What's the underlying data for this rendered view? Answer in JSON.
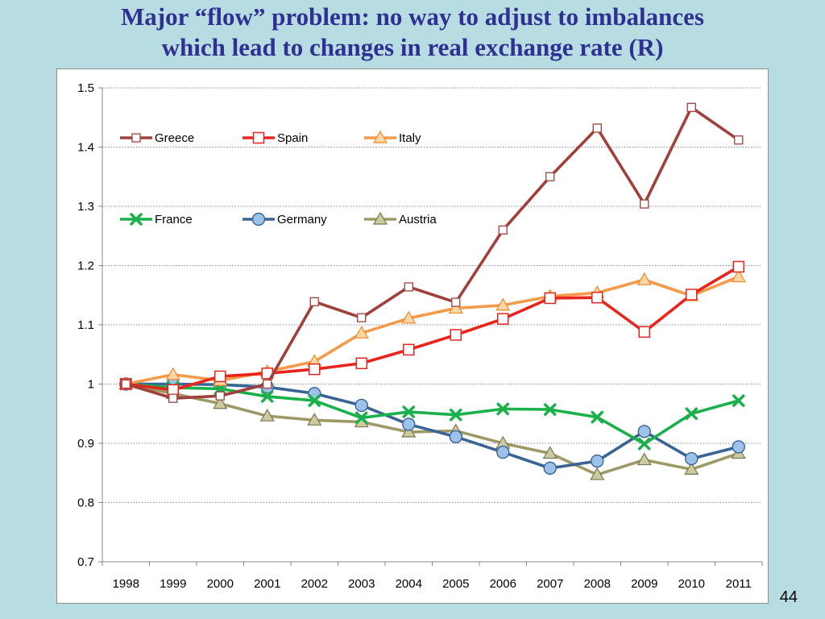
{
  "title": {
    "line1": "Major “flow” problem: no way to adjust to imbalances",
    "line2": "which lead to changes in real exchange rate (R)"
  },
  "page_number": "44",
  "chart_data": {
    "type": "line",
    "categories": [
      "1998",
      "1999",
      "2000",
      "2001",
      "2002",
      "2003",
      "2004",
      "2005",
      "2006",
      "2007",
      "2008",
      "2009",
      "2010",
      "2011"
    ],
    "ylim": [
      0.7,
      1.5
    ],
    "yticks": [
      0.7,
      0.8,
      0.9,
      1,
      1.1,
      1.2,
      1.3,
      1.4,
      1.5
    ],
    "ytick_labels": [
      "0.7",
      "0.8",
      "0.9",
      "1",
      "1.1",
      "1.2",
      "1.3",
      "1.4",
      "1.5"
    ],
    "grid": "horizontal dotted",
    "legend_position": "top-left inside, two rows",
    "series": [
      {
        "name": "Greece",
        "color": "#a0403a",
        "marker": "square-open",
        "values": [
          1.0,
          0.976,
          0.98,
          1.0,
          1.139,
          1.112,
          1.164,
          1.138,
          1.26,
          1.35,
          1.432,
          1.304,
          1.467,
          1.412
        ]
      },
      {
        "name": "Spain",
        "color": "#e8241c",
        "marker": "square-open-large",
        "values": [
          1.0,
          0.99,
          1.013,
          1.018,
          1.025,
          1.035,
          1.058,
          1.083,
          1.11,
          1.145,
          1.146,
          1.088,
          1.151,
          1.198
        ]
      },
      {
        "name": "Italy",
        "color": "#f49a48",
        "marker": "triangle",
        "values": [
          1.0,
          1.016,
          1.006,
          1.021,
          1.038,
          1.086,
          1.111,
          1.128,
          1.133,
          1.148,
          1.154,
          1.176,
          1.149,
          1.181
        ]
      },
      {
        "name": "France",
        "color": "#1ab04a",
        "marker": "x",
        "values": [
          1.0,
          0.994,
          0.992,
          0.979,
          0.972,
          0.943,
          0.953,
          0.948,
          0.958,
          0.957,
          0.944,
          0.899,
          0.95,
          0.972
        ]
      },
      {
        "name": "Germany",
        "color": "#3a6496",
        "marker": "circle",
        "values": [
          1.0,
          1.0,
          0.999,
          0.995,
          0.984,
          0.964,
          0.932,
          0.911,
          0.885,
          0.858,
          0.87,
          0.92,
          0.874,
          0.894
        ]
      },
      {
        "name": "Austria",
        "color": "#9e9a68",
        "marker": "triangle",
        "values": [
          1.0,
          0.984,
          0.967,
          0.946,
          0.939,
          0.936,
          0.919,
          0.921,
          0.9,
          0.883,
          0.847,
          0.872,
          0.856,
          0.883
        ]
      }
    ]
  }
}
